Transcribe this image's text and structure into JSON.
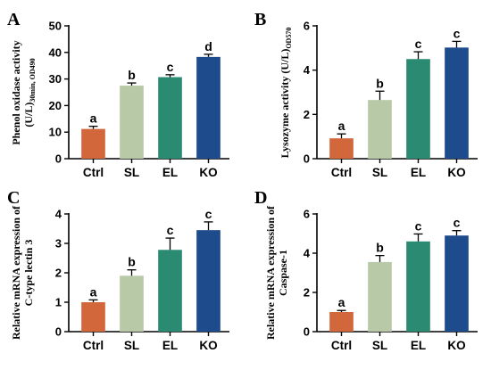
{
  "chart_data": [
    {
      "type": "bar",
      "panel": "A",
      "ylabel_lines": [
        "Phenol oxidase activity",
        "(U/L)"
      ],
      "ylabel_sub": "30min, OD490",
      "categories": [
        "Ctrl",
        "SL",
        "EL",
        "KO"
      ],
      "values": [
        11.2,
        27.5,
        30.7,
        38.3
      ],
      "errors": [
        1.0,
        1.0,
        0.9,
        1.0
      ],
      "significance": [
        "a",
        "b",
        "c",
        "d"
      ],
      "colors": [
        "#d2673b",
        "#b7c9a7",
        "#2a8a72",
        "#1d4b8c"
      ],
      "ylim": [
        0,
        50
      ],
      "yticks": [
        0,
        10,
        20,
        30,
        40,
        50
      ]
    },
    {
      "type": "bar",
      "panel": "B",
      "ylabel_lines": [
        "Lysozyme activity (U/L)"
      ],
      "ylabel_sub": "OD570",
      "categories": [
        "Ctrl",
        "SL",
        "EL",
        "KO"
      ],
      "values": [
        0.92,
        2.65,
        4.5,
        5.02
      ],
      "errors": [
        0.2,
        0.4,
        0.33,
        0.28
      ],
      "significance": [
        "a",
        "b",
        "c",
        "c"
      ],
      "colors": [
        "#d2673b",
        "#b7c9a7",
        "#2a8a72",
        "#1d4b8c"
      ],
      "ylim": [
        0,
        6
      ],
      "yticks": [
        0,
        2,
        4,
        6
      ]
    },
    {
      "type": "bar",
      "panel": "C",
      "ylabel_lines": [
        "Relative mRNA expression of",
        "C-type lectin 3"
      ],
      "ylabel_sub": "",
      "categories": [
        "Ctrl",
        "SL",
        "EL",
        "KO"
      ],
      "values": [
        1.0,
        1.9,
        2.78,
        3.45
      ],
      "errors": [
        0.08,
        0.2,
        0.4,
        0.28
      ],
      "significance": [
        "a",
        "b",
        "c",
        "c"
      ],
      "colors": [
        "#d2673b",
        "#b7c9a7",
        "#2a8a72",
        "#1d4b8c"
      ],
      "ylim": [
        0,
        4
      ],
      "yticks": [
        0,
        1,
        2,
        3,
        4
      ]
    },
    {
      "type": "bar",
      "panel": "D",
      "ylabel_lines": [
        "Relative mRNA expression of",
        "Caspase-1"
      ],
      "ylabel_sub": "",
      "categories": [
        "Ctrl",
        "SL",
        "EL",
        "KO"
      ],
      "values": [
        1.0,
        3.55,
        4.6,
        4.9
      ],
      "errors": [
        0.08,
        0.33,
        0.38,
        0.25
      ],
      "significance": [
        "a",
        "b",
        "c",
        "c"
      ],
      "colors": [
        "#d2673b",
        "#b7c9a7",
        "#2a8a72",
        "#1d4b8c"
      ],
      "ylim": [
        0,
        6
      ],
      "yticks": [
        0,
        2,
        4,
        6
      ]
    }
  ]
}
